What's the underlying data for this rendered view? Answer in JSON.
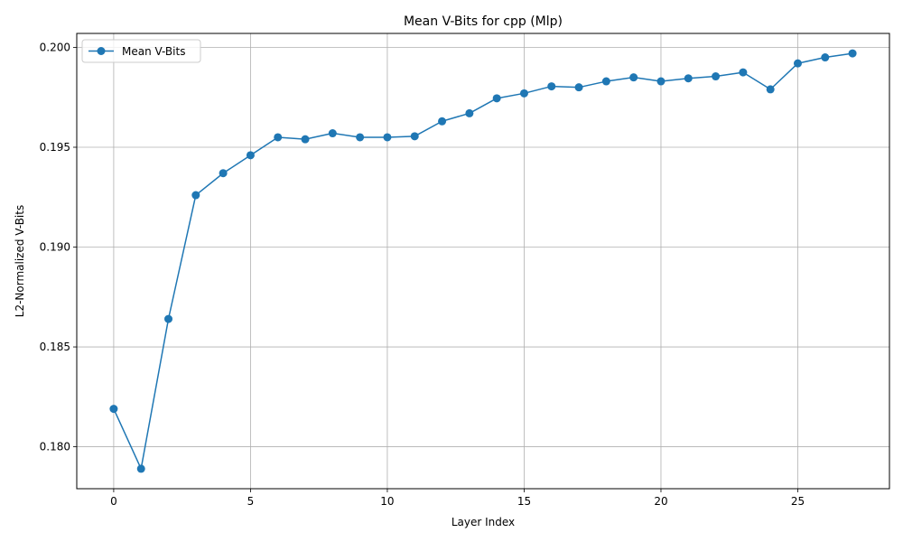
{
  "chart_data": {
    "type": "line",
    "title": "Mean V-Bits for cpp (Mlp)",
    "xlabel": "Layer Index",
    "ylabel": "L2-Normalized V-Bits",
    "xlim": [
      -1.35,
      28.35
    ],
    "ylim": [
      0.1779,
      0.2007
    ],
    "xticks": [
      0,
      5,
      10,
      15,
      20,
      25
    ],
    "xtick_labels": [
      "0",
      "5",
      "10",
      "15",
      "20",
      "25"
    ],
    "yticks": [
      0.18,
      0.185,
      0.19,
      0.195,
      0.2
    ],
    "ytick_labels": [
      "0.180",
      "0.185",
      "0.190",
      "0.195",
      "0.200"
    ],
    "grid": true,
    "legend_position": "top-left",
    "series": [
      {
        "name": "Mean V-Bits",
        "color": "#1f77b4",
        "marker": "circle",
        "x": [
          0,
          1,
          2,
          3,
          4,
          5,
          6,
          7,
          8,
          9,
          10,
          11,
          12,
          13,
          14,
          15,
          16,
          17,
          18,
          19,
          20,
          21,
          22,
          23,
          24,
          25,
          26,
          27
        ],
        "values": [
          0.1819,
          0.1789,
          0.1864,
          0.1926,
          0.1937,
          0.1946,
          0.1955,
          0.1954,
          0.1957,
          0.1955,
          0.1955,
          0.19555,
          0.1963,
          0.1967,
          0.19745,
          0.1977,
          0.19805,
          0.198,
          0.1983,
          0.1985,
          0.1983,
          0.19845,
          0.19855,
          0.19875,
          0.1979,
          0.1992,
          0.1995,
          0.1997
        ]
      }
    ]
  }
}
